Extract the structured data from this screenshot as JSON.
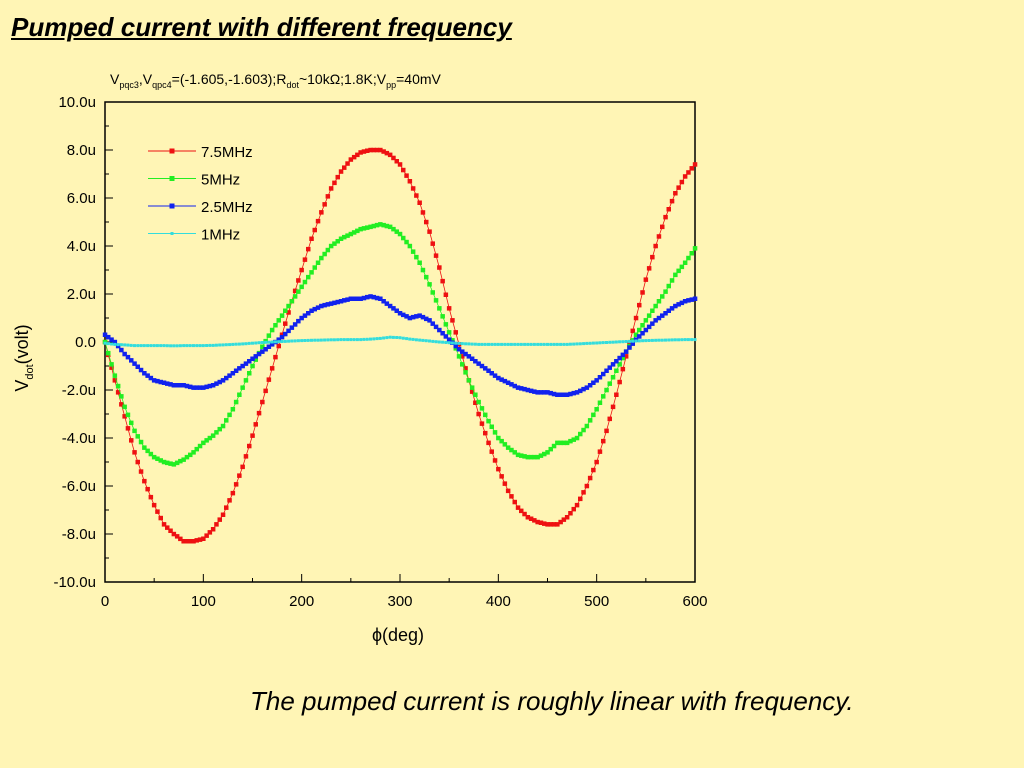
{
  "slide": {
    "title": "Pumped current with different frequency",
    "caption": "The pumped current is roughly linear with frequency."
  },
  "chart_data": {
    "type": "scatter",
    "subtitle_parts": [
      {
        "text": "V",
        "sub": false
      },
      {
        "text": "pqc3",
        "sub": true
      },
      {
        "text": ",V",
        "sub": false
      },
      {
        "text": "qpc4",
        "sub": true
      },
      {
        "text": "=(-1.605,-1.603);R",
        "sub": false
      },
      {
        "text": "dot",
        "sub": true
      },
      {
        "text": "~10kΩ;1.8K;V",
        "sub": false
      },
      {
        "text": "pp",
        "sub": true
      },
      {
        "text": "=40mV",
        "sub": false
      }
    ],
    "xlabel": "ϕ(deg)",
    "ylabel_main": "V",
    "ylabel_sub": "dot",
    "ylabel_tail": "(volt)",
    "xlim": [
      0,
      600
    ],
    "ylim": [
      -10,
      10
    ],
    "x_ticks": [
      "0",
      "100",
      "200",
      "300",
      "400",
      "500",
      "600"
    ],
    "y_ticks": [
      "-10.0u",
      "-8.0u",
      "-6.0u",
      "-4.0u",
      "-2.0u",
      "0.0",
      "2.0u",
      "4.0u",
      "6.0u",
      "8.0u",
      "10.0u"
    ],
    "y_unit": "microvolt",
    "grid": false,
    "legend_position": "top-left",
    "series": [
      {
        "name": "7.5MHz",
        "color": "#ee1111",
        "x": [
          0,
          10,
          20,
          30,
          40,
          50,
          60,
          70,
          80,
          90,
          100,
          110,
          120,
          130,
          140,
          150,
          160,
          170,
          180,
          190,
          200,
          210,
          220,
          230,
          240,
          250,
          260,
          270,
          280,
          290,
          300,
          310,
          320,
          330,
          340,
          350,
          360,
          370,
          380,
          390,
          400,
          410,
          420,
          430,
          440,
          450,
          460,
          470,
          480,
          490,
          500,
          510,
          520,
          530,
          540,
          550,
          560,
          570,
          580,
          590,
          600
        ],
        "y": [
          0.0,
          -1.6,
          -3.1,
          -4.6,
          -5.8,
          -6.8,
          -7.6,
          -8.0,
          -8.3,
          -8.3,
          -8.2,
          -7.8,
          -7.2,
          -6.3,
          -5.2,
          -3.9,
          -2.5,
          -1.1,
          0.3,
          1.7,
          3.0,
          4.3,
          5.4,
          6.4,
          7.1,
          7.6,
          7.9,
          8.0,
          8.0,
          7.8,
          7.4,
          6.7,
          5.8,
          4.6,
          3.1,
          1.4,
          -0.1,
          -1.6,
          -3.0,
          -4.2,
          -5.3,
          -6.2,
          -6.9,
          -7.3,
          -7.5,
          -7.6,
          -7.6,
          -7.3,
          -6.8,
          -6.0,
          -5.0,
          -3.7,
          -2.2,
          -0.6,
          1.0,
          2.6,
          4.0,
          5.2,
          6.2,
          6.9,
          7.4
        ]
      },
      {
        "name": "5MHz",
        "color": "#22ee22",
        "x": [
          0,
          10,
          20,
          30,
          40,
          50,
          60,
          70,
          80,
          90,
          100,
          110,
          120,
          130,
          140,
          150,
          160,
          170,
          180,
          190,
          200,
          210,
          220,
          230,
          240,
          250,
          260,
          270,
          280,
          290,
          300,
          310,
          320,
          330,
          340,
          350,
          360,
          370,
          380,
          390,
          400,
          410,
          420,
          430,
          440,
          450,
          460,
          470,
          480,
          490,
          500,
          510,
          520,
          530,
          540,
          550,
          560,
          570,
          580,
          590,
          600
        ],
        "y": [
          0.0,
          -1.4,
          -2.7,
          -3.7,
          -4.4,
          -4.8,
          -5.0,
          -5.1,
          -4.9,
          -4.6,
          -4.2,
          -3.9,
          -3.5,
          -2.8,
          -1.9,
          -1.0,
          -0.2,
          0.5,
          1.1,
          1.7,
          2.3,
          2.9,
          3.5,
          4.0,
          4.3,
          4.5,
          4.7,
          4.8,
          4.9,
          4.8,
          4.5,
          4.0,
          3.3,
          2.4,
          1.4,
          0.4,
          -0.6,
          -1.6,
          -2.5,
          -3.3,
          -4.0,
          -4.4,
          -4.7,
          -4.8,
          -4.8,
          -4.6,
          -4.2,
          -4.2,
          -4.0,
          -3.5,
          -2.8,
          -2.0,
          -1.2,
          -0.4,
          0.3,
          0.9,
          1.5,
          2.1,
          2.8,
          3.3,
          3.9
        ]
      },
      {
        "name": "2.5MHz",
        "color": "#1122ee",
        "x": [
          0,
          10,
          20,
          30,
          40,
          50,
          60,
          70,
          80,
          90,
          100,
          110,
          120,
          130,
          140,
          150,
          160,
          170,
          180,
          190,
          200,
          210,
          220,
          230,
          240,
          250,
          260,
          270,
          280,
          290,
          300,
          310,
          320,
          330,
          340,
          350,
          360,
          370,
          380,
          390,
          400,
          410,
          420,
          430,
          440,
          450,
          460,
          470,
          480,
          490,
          500,
          510,
          520,
          530,
          540,
          550,
          560,
          570,
          580,
          590,
          600
        ],
        "y": [
          0.3,
          0.0,
          -0.5,
          -0.9,
          -1.3,
          -1.6,
          -1.7,
          -1.8,
          -1.8,
          -1.9,
          -1.9,
          -1.8,
          -1.6,
          -1.3,
          -1.0,
          -0.7,
          -0.4,
          -0.1,
          0.2,
          0.6,
          1.0,
          1.3,
          1.5,
          1.6,
          1.7,
          1.8,
          1.8,
          1.9,
          1.8,
          1.5,
          1.2,
          1.0,
          1.1,
          0.9,
          0.5,
          0.1,
          -0.3,
          -0.6,
          -0.9,
          -1.2,
          -1.5,
          -1.7,
          -1.9,
          -2.0,
          -2.1,
          -2.1,
          -2.2,
          -2.2,
          -2.1,
          -1.9,
          -1.6,
          -1.2,
          -0.8,
          -0.4,
          0.1,
          0.5,
          0.9,
          1.2,
          1.5,
          1.7,
          1.8
        ]
      },
      {
        "name": "1MHz",
        "color": "#33dddd",
        "x": [
          0,
          10,
          20,
          30,
          40,
          50,
          60,
          70,
          80,
          90,
          100,
          110,
          120,
          130,
          140,
          150,
          160,
          170,
          180,
          190,
          200,
          210,
          220,
          230,
          240,
          250,
          260,
          270,
          280,
          290,
          300,
          310,
          320,
          330,
          340,
          350,
          360,
          370,
          380,
          390,
          400,
          410,
          420,
          430,
          440,
          450,
          460,
          470,
          480,
          490,
          500,
          510,
          520,
          530,
          540,
          550,
          560,
          570,
          580,
          590,
          600
        ],
        "y": [
          -0.05,
          -0.1,
          -0.12,
          -0.15,
          -0.15,
          -0.15,
          -0.15,
          -0.16,
          -0.15,
          -0.15,
          -0.15,
          -0.14,
          -0.12,
          -0.1,
          -0.08,
          -0.05,
          -0.02,
          0.0,
          0.02,
          0.04,
          0.06,
          0.07,
          0.08,
          0.09,
          0.1,
          0.1,
          0.1,
          0.12,
          0.15,
          0.2,
          0.18,
          0.12,
          0.08,
          0.04,
          0.0,
          -0.03,
          -0.06,
          -0.08,
          -0.1,
          -0.1,
          -0.1,
          -0.1,
          -0.1,
          -0.1,
          -0.1,
          -0.1,
          -0.1,
          -0.1,
          -0.08,
          -0.06,
          -0.04,
          -0.02,
          0.0,
          0.02,
          0.04,
          0.06,
          0.07,
          0.08,
          0.09,
          0.1,
          0.1
        ]
      }
    ]
  }
}
